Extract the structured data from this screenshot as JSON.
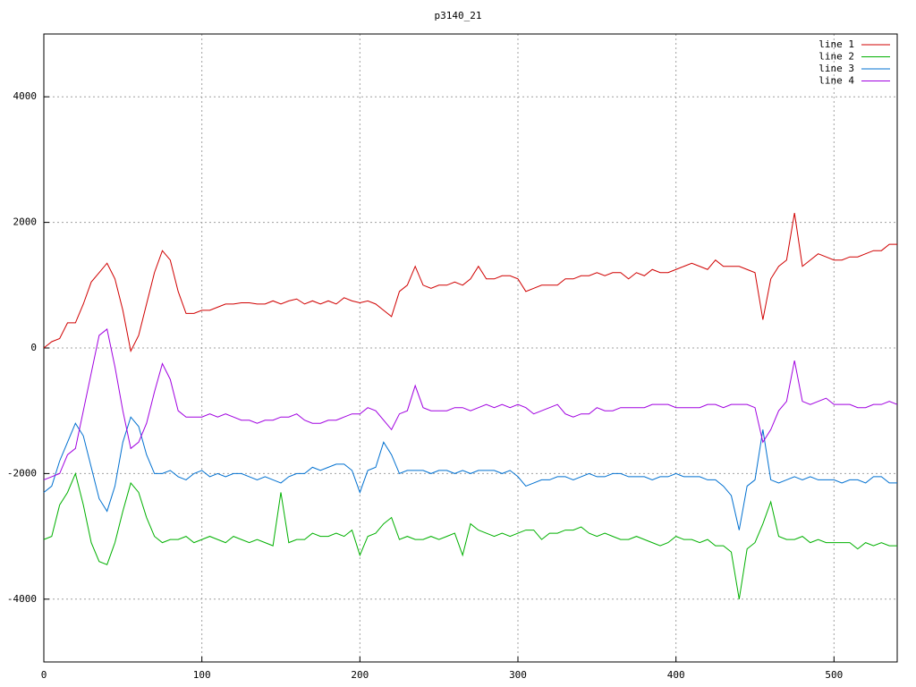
{
  "chart_data": {
    "type": "line",
    "title": "p3140_21",
    "x": [
      0,
      5,
      10,
      15,
      20,
      25,
      30,
      35,
      40,
      45,
      50,
      55,
      60,
      65,
      70,
      75,
      80,
      85,
      90,
      95,
      100,
      105,
      110,
      115,
      120,
      125,
      130,
      135,
      140,
      145,
      150,
      155,
      160,
      165,
      170,
      175,
      180,
      185,
      190,
      195,
      200,
      205,
      210,
      215,
      220,
      225,
      230,
      235,
      240,
      245,
      250,
      255,
      260,
      265,
      270,
      275,
      280,
      285,
      290,
      295,
      300,
      305,
      310,
      315,
      320,
      325,
      330,
      335,
      340,
      345,
      350,
      355,
      360,
      365,
      370,
      375,
      380,
      385,
      390,
      395,
      400,
      405,
      410,
      415,
      420,
      425,
      430,
      435,
      440,
      445,
      450,
      455,
      460,
      465,
      470,
      475,
      480,
      485,
      490,
      495,
      500,
      505,
      510,
      515,
      520,
      525,
      530,
      535,
      540
    ],
    "series": [
      {
        "name": "line 1",
        "color": "#d00000",
        "values": [
          0,
          100,
          150,
          400,
          400,
          700,
          1050,
          1200,
          1350,
          1100,
          600,
          -50,
          200,
          700,
          1200,
          1550,
          1400,
          900,
          550,
          550,
          600,
          600,
          650,
          700,
          700,
          720,
          720,
          700,
          700,
          750,
          700,
          750,
          780,
          700,
          750,
          700,
          750,
          700,
          800,
          750,
          720,
          750,
          700,
          600,
          500,
          900,
          1000,
          1300,
          1000,
          950,
          1000,
          1000,
          1050,
          1000,
          1100,
          1300,
          1100,
          1100,
          1150,
          1150,
          1100,
          900,
          950,
          1000,
          1000,
          1000,
          1100,
          1100,
          1150,
          1150,
          1200,
          1150,
          1200,
          1200,
          1100,
          1200,
          1150,
          1250,
          1200,
          1200,
          1250,
          1300,
          1350,
          1300,
          1250,
          1400,
          1300,
          1300,
          1300,
          1250,
          1200,
          450,
          1100,
          1300,
          1400,
          2150,
          1300,
          1400,
          1500,
          1450,
          1400,
          1400,
          1450,
          1450,
          1500,
          1550,
          1550,
          1650,
          1650
        ]
      },
      {
        "name": "line 2",
        "color": "#00b000",
        "values": [
          -3050,
          -3000,
          -2500,
          -2300,
          -2000,
          -2500,
          -3100,
          -3400,
          -3450,
          -3100,
          -2600,
          -2150,
          -2300,
          -2700,
          -3000,
          -3100,
          -3050,
          -3050,
          -3000,
          -3100,
          -3050,
          -3000,
          -3050,
          -3100,
          -3000,
          -3050,
          -3100,
          -3050,
          -3100,
          -3150,
          -2300,
          -3100,
          -3050,
          -3050,
          -2950,
          -3000,
          -3000,
          -2950,
          -3000,
          -2900,
          -3300,
          -3000,
          -2950,
          -2800,
          -2700,
          -3050,
          -3000,
          -3050,
          -3050,
          -3000,
          -3050,
          -3000,
          -2950,
          -3300,
          -2800,
          -2900,
          -2950,
          -3000,
          -2950,
          -3000,
          -2950,
          -2900,
          -2900,
          -3050,
          -2950,
          -2950,
          -2900,
          -2900,
          -2850,
          -2950,
          -3000,
          -2950,
          -3000,
          -3050,
          -3050,
          -3000,
          -3050,
          -3100,
          -3150,
          -3100,
          -3000,
          -3050,
          -3050,
          -3100,
          -3050,
          -3150,
          -3150,
          -3250,
          -4000,
          -3200,
          -3100,
          -2800,
          -2450,
          -3000,
          -3050,
          -3050,
          -3000,
          -3100,
          -3050,
          -3100,
          -3100,
          -3100,
          -3100,
          -3200,
          -3100,
          -3150,
          -3100,
          -3150,
          -3150
        ]
      },
      {
        "name": "line 3",
        "color": "#0070d0",
        "values": [
          -2300,
          -2200,
          -1800,
          -1500,
          -1200,
          -1400,
          -1900,
          -2400,
          -2600,
          -2200,
          -1500,
          -1100,
          -1250,
          -1700,
          -2000,
          -2000,
          -1950,
          -2050,
          -2100,
          -2000,
          -1950,
          -2050,
          -2000,
          -2050,
          -2000,
          -2000,
          -2050,
          -2100,
          -2050,
          -2100,
          -2150,
          -2050,
          -2000,
          -2000,
          -1900,
          -1950,
          -1900,
          -1850,
          -1850,
          -1950,
          -2300,
          -1950,
          -1900,
          -1500,
          -1700,
          -2000,
          -1950,
          -1950,
          -1950,
          -2000,
          -1950,
          -1950,
          -2000,
          -1950,
          -2000,
          -1950,
          -1950,
          -1950,
          -2000,
          -1950,
          -2050,
          -2200,
          -2150,
          -2100,
          -2100,
          -2050,
          -2050,
          -2100,
          -2050,
          -2000,
          -2050,
          -2050,
          -2000,
          -2000,
          -2050,
          -2050,
          -2050,
          -2100,
          -2050,
          -2050,
          -2000,
          -2050,
          -2050,
          -2050,
          -2100,
          -2100,
          -2200,
          -2350,
          -2900,
          -2200,
          -2100,
          -1300,
          -2100,
          -2150,
          -2100,
          -2050,
          -2100,
          -2050,
          -2100,
          -2100,
          -2100,
          -2150,
          -2100,
          -2100,
          -2150,
          -2050,
          -2050,
          -2150,
          -2150
        ]
      },
      {
        "name": "line 4",
        "color": "#a000e0",
        "values": [
          -2100,
          -2050,
          -2000,
          -1700,
          -1600,
          -1000,
          -400,
          200,
          300,
          -300,
          -1000,
          -1600,
          -1500,
          -1200,
          -700,
          -250,
          -500,
          -1000,
          -1100,
          -1100,
          -1100,
          -1050,
          -1100,
          -1050,
          -1100,
          -1150,
          -1150,
          -1200,
          -1150,
          -1150,
          -1100,
          -1100,
          -1050,
          -1150,
          -1200,
          -1200,
          -1150,
          -1150,
          -1100,
          -1050,
          -1050,
          -950,
          -1000,
          -1150,
          -1300,
          -1050,
          -1000,
          -600,
          -950,
          -1000,
          -1000,
          -1000,
          -950,
          -950,
          -1000,
          -950,
          -900,
          -950,
          -900,
          -950,
          -900,
          -950,
          -1050,
          -1000,
          -950,
          -900,
          -1050,
          -1100,
          -1050,
          -1050,
          -950,
          -1000,
          -1000,
          -950,
          -950,
          -950,
          -950,
          -900,
          -900,
          -900,
          -950,
          -950,
          -950,
          -950,
          -900,
          -900,
          -950,
          -900,
          -900,
          -900,
          -950,
          -1500,
          -1300,
          -1000,
          -850,
          -200,
          -850,
          -900,
          -850,
          -800,
          -900,
          -900,
          -900,
          -950,
          -950,
          -900,
          -900,
          -850,
          -900
        ]
      }
    ],
    "xlim": [
      0,
      540
    ],
    "xticks": [
      0,
      100,
      200,
      300,
      400,
      500
    ],
    "ylim": [
      -5000,
      5000
    ],
    "yticks": [
      -4000,
      -2000,
      0,
      2000,
      4000
    ],
    "grid": true,
    "legend": "top-right"
  }
}
